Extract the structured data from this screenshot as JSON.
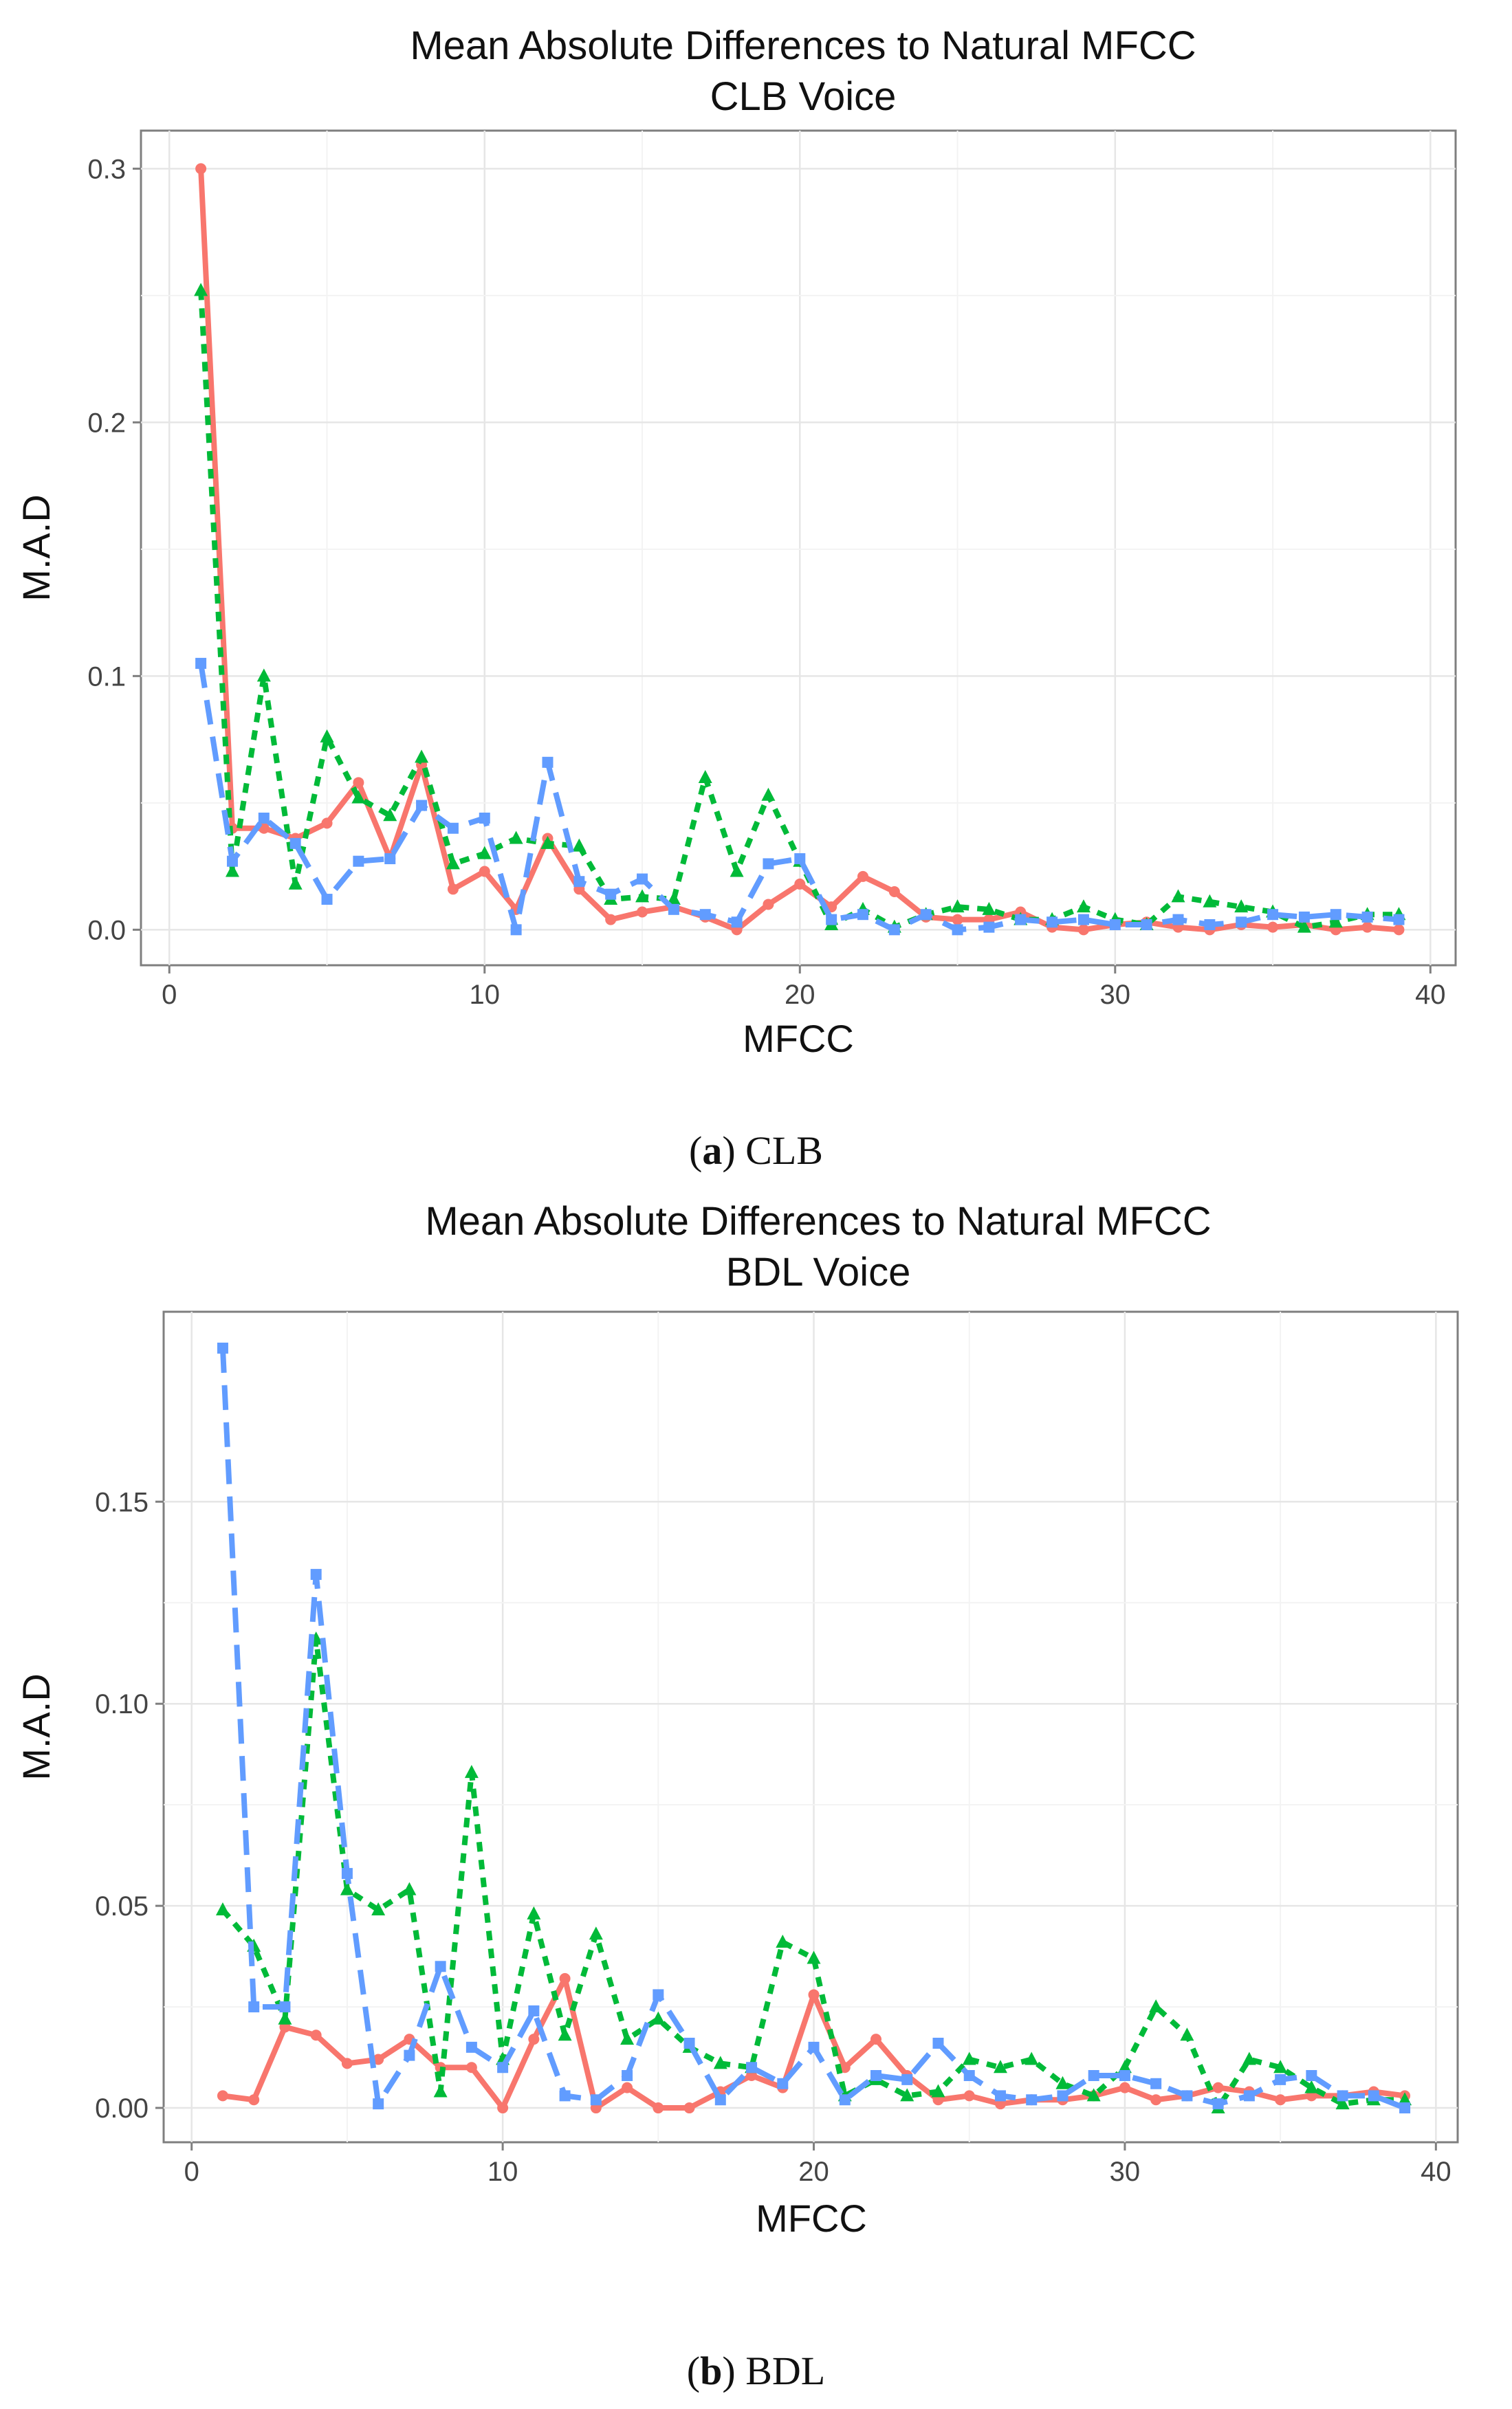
{
  "chart_data": [
    {
      "type": "line",
      "title": "Mean Absolute Differences to Natural MFCC",
      "subtitle": "CLB Voice",
      "xlabel": "MFCC",
      "ylabel": "M.A.D",
      "xlim": [
        -0.9,
        40.8
      ],
      "ylim": [
        -0.014,
        0.315
      ],
      "xticks": [
        0,
        10,
        20,
        30,
        40
      ],
      "yticks": [
        0.0,
        0.1,
        0.2,
        0.3
      ],
      "ytick_labels": [
        "0.0",
        "0.1",
        "0.2",
        "0.3"
      ],
      "grid": true,
      "series": [
        {
          "name": "series-red",
          "color": "#F8766D",
          "dash": "solid",
          "marker": "circle",
          "x": [
            1,
            2,
            3,
            4,
            5,
            6,
            7,
            8,
            9,
            10,
            11,
            12,
            13,
            14,
            15,
            16,
            17,
            18,
            19,
            20,
            21,
            22,
            23,
            24,
            25,
            26,
            27,
            28,
            29,
            30,
            31,
            32,
            33,
            34,
            35,
            36,
            37,
            38,
            39
          ],
          "values": [
            0.3,
            0.04,
            0.04,
            0.036,
            0.042,
            0.058,
            0.028,
            0.065,
            0.016,
            0.023,
            0.008,
            0.036,
            0.016,
            0.004,
            0.007,
            0.009,
            0.005,
            0.0,
            0.01,
            0.018,
            0.009,
            0.021,
            0.015,
            0.005,
            0.004,
            0.004,
            0.007,
            0.001,
            0.0,
            0.002,
            0.003,
            0.001,
            0.0,
            0.002,
            0.001,
            0.002,
            0.0,
            0.001,
            0.0
          ]
        },
        {
          "name": "series-green",
          "color": "#00BA38",
          "dash": "short",
          "marker": "triangle",
          "x": [
            1,
            2,
            3,
            4,
            5,
            6,
            7,
            8,
            9,
            10,
            11,
            12,
            13,
            14,
            15,
            16,
            17,
            18,
            19,
            20,
            21,
            22,
            23,
            24,
            25,
            26,
            27,
            28,
            29,
            30,
            31,
            32,
            33,
            34,
            35,
            36,
            37,
            38,
            39
          ],
          "values": [
            0.252,
            0.023,
            0.1,
            0.018,
            0.076,
            0.052,
            0.045,
            0.068,
            0.026,
            0.03,
            0.036,
            0.034,
            0.033,
            0.012,
            0.013,
            0.012,
            0.06,
            0.023,
            0.053,
            0.027,
            0.002,
            0.008,
            0.001,
            0.006,
            0.009,
            0.008,
            0.004,
            0.004,
            0.009,
            0.004,
            0.002,
            0.013,
            0.011,
            0.009,
            0.007,
            0.001,
            0.003,
            0.006,
            0.006
          ]
        },
        {
          "name": "series-blue",
          "color": "#619CFF",
          "dash": "long",
          "marker": "square",
          "x": [
            1,
            2,
            3,
            4,
            5,
            6,
            7,
            8,
            9,
            10,
            11,
            12,
            13,
            14,
            15,
            16,
            17,
            18,
            19,
            20,
            21,
            22,
            23,
            24,
            25,
            26,
            27,
            28,
            29,
            30,
            31,
            32,
            33,
            34,
            35,
            36,
            37,
            38,
            39
          ],
          "values": [
            0.105,
            0.027,
            0.044,
            0.034,
            0.012,
            0.027,
            0.028,
            0.049,
            0.04,
            0.044,
            0.0,
            0.066,
            0.019,
            0.014,
            0.02,
            0.008,
            0.006,
            0.003,
            0.026,
            0.028,
            0.004,
            0.006,
            0.0,
            0.006,
            0.0,
            0.001,
            0.004,
            0.003,
            0.004,
            0.002,
            0.002,
            0.004,
            0.002,
            0.003,
            0.006,
            0.005,
            0.006,
            0.005,
            0.004
          ]
        }
      ]
    },
    {
      "type": "line",
      "title": "Mean Absolute Differences to Natural MFCC",
      "subtitle": "BDL Voice",
      "xlabel": "MFCC",
      "ylabel": "M.A.D",
      "xlim": [
        -0.9,
        40.7
      ],
      "ylim": [
        -0.0085,
        0.197
      ],
      "xticks": [
        0,
        10,
        20,
        30,
        40
      ],
      "yticks": [
        0.0,
        0.05,
        0.1,
        0.15
      ],
      "ytick_labels": [
        "0.00",
        "0.05",
        "0.10",
        "0.15"
      ],
      "grid": true,
      "series": [
        {
          "name": "series-red",
          "color": "#F8766D",
          "dash": "solid",
          "marker": "circle",
          "x": [
            1,
            2,
            3,
            4,
            5,
            6,
            7,
            8,
            9,
            10,
            11,
            12,
            13,
            14,
            15,
            16,
            17,
            18,
            19,
            20,
            21,
            22,
            23,
            24,
            25,
            26,
            27,
            28,
            29,
            30,
            31,
            32,
            33,
            34,
            35,
            36,
            37,
            38,
            39
          ],
          "values": [
            0.003,
            0.002,
            0.02,
            0.018,
            0.011,
            0.012,
            0.017,
            0.01,
            0.01,
            0.0,
            0.017,
            0.032,
            0.0,
            0.005,
            0.0,
            0.0,
            0.004,
            0.008,
            0.005,
            0.028,
            0.01,
            0.017,
            0.008,
            0.002,
            0.003,
            0.001,
            0.002,
            0.002,
            0.003,
            0.005,
            0.002,
            0.003,
            0.005,
            0.004,
            0.002,
            0.003,
            0.003,
            0.004,
            0.003
          ]
        },
        {
          "name": "series-green",
          "color": "#00BA38",
          "dash": "short",
          "marker": "triangle",
          "x": [
            1,
            2,
            3,
            4,
            5,
            6,
            7,
            8,
            9,
            10,
            11,
            12,
            13,
            14,
            15,
            16,
            17,
            18,
            19,
            20,
            21,
            22,
            23,
            24,
            25,
            26,
            27,
            28,
            29,
            30,
            31,
            32,
            33,
            34,
            35,
            36,
            37,
            38,
            39
          ],
          "values": [
            0.049,
            0.04,
            0.022,
            0.116,
            0.054,
            0.049,
            0.054,
            0.004,
            0.083,
            0.012,
            0.048,
            0.018,
            0.043,
            0.017,
            0.022,
            0.015,
            0.011,
            0.01,
            0.041,
            0.037,
            0.003,
            0.007,
            0.003,
            0.004,
            0.012,
            0.01,
            0.012,
            0.006,
            0.003,
            0.01,
            0.025,
            0.018,
            0.0,
            0.012,
            0.01,
            0.005,
            0.001,
            0.002,
            0.002
          ]
        },
        {
          "name": "series-blue",
          "color": "#619CFF",
          "dash": "long",
          "marker": "square",
          "x": [
            1,
            2,
            3,
            4,
            5,
            6,
            7,
            8,
            9,
            10,
            11,
            12,
            13,
            14,
            15,
            16,
            17,
            18,
            19,
            20,
            21,
            22,
            23,
            24,
            25,
            26,
            27,
            28,
            29,
            30,
            31,
            32,
            33,
            34,
            35,
            36,
            37,
            38,
            39
          ],
          "values": [
            0.188,
            0.025,
            0.025,
            0.132,
            0.058,
            0.001,
            0.013,
            0.035,
            0.015,
            0.01,
            0.024,
            0.003,
            0.002,
            0.008,
            0.028,
            0.016,
            0.002,
            0.01,
            0.006,
            0.015,
            0.002,
            0.008,
            0.007,
            0.016,
            0.008,
            0.003,
            0.002,
            0.003,
            0.008,
            0.008,
            0.006,
            0.003,
            0.001,
            0.003,
            0.007,
            0.008,
            0.003,
            0.003,
            0.0
          ]
        }
      ]
    }
  ],
  "captions": [
    {
      "letter": "a",
      "text": "CLB"
    },
    {
      "letter": "b",
      "text": "BDL"
    }
  ]
}
